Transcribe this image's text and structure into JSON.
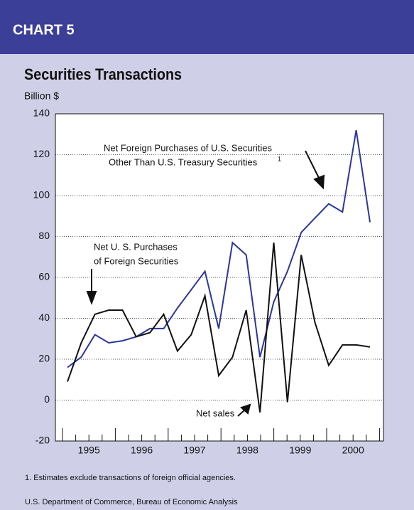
{
  "header": "CHART 5",
  "chart_data": {
    "type": "line",
    "title": "Securities Transactions",
    "y_label": "Billion $",
    "x_labels": [
      "1995",
      "1996",
      "1997",
      "1998",
      "1999",
      "2000"
    ],
    "categories": [
      null,
      null,
      null,
      null,
      null,
      null,
      null,
      null,
      null,
      null,
      null,
      null,
      null,
      null,
      null,
      null,
      null,
      null,
      null,
      null,
      null,
      null,
      null
    ],
    "series": [
      {
        "name": "Net Foreign Purchases of U.S. Securities Other Than U.S. Treasury Securities",
        "color": "#2b35a0",
        "values": [
          16,
          21,
          32,
          28,
          29,
          31,
          35,
          35,
          45,
          54,
          63,
          35,
          77,
          71,
          21,
          48,
          63,
          82,
          89,
          96,
          92,
          132,
          87
        ]
      },
      {
        "name": "Net U. S. Purchases of Foreign Securities",
        "color": "#111111",
        "values": [
          9,
          28,
          42,
          44,
          44,
          31,
          33,
          42,
          24,
          32,
          51,
          12,
          21,
          44,
          -6,
          77,
          -1,
          71,
          38,
          17,
          27,
          27,
          26
        ]
      }
    ],
    "ylim": [
      -20,
      140
    ],
    "yticks": [
      -20,
      0,
      20,
      40,
      60,
      80,
      100,
      120,
      140
    ],
    "grid": true,
    "annotations": {
      "foreign_1": "Net Foreign Purchases of U.S. Securities",
      "foreign_2": "Other Than U.S. Treasury Securities",
      "foreign_note": "1",
      "us_1": "Net U. S. Purchases",
      "us_2": "of Foreign Securities",
      "net_sales": "Net sales"
    }
  },
  "footnote": "1. Estimates exclude transactions of foreign official agencies.",
  "source": "U.S. Department of Commerce, Bureau of Economic Analysis"
}
